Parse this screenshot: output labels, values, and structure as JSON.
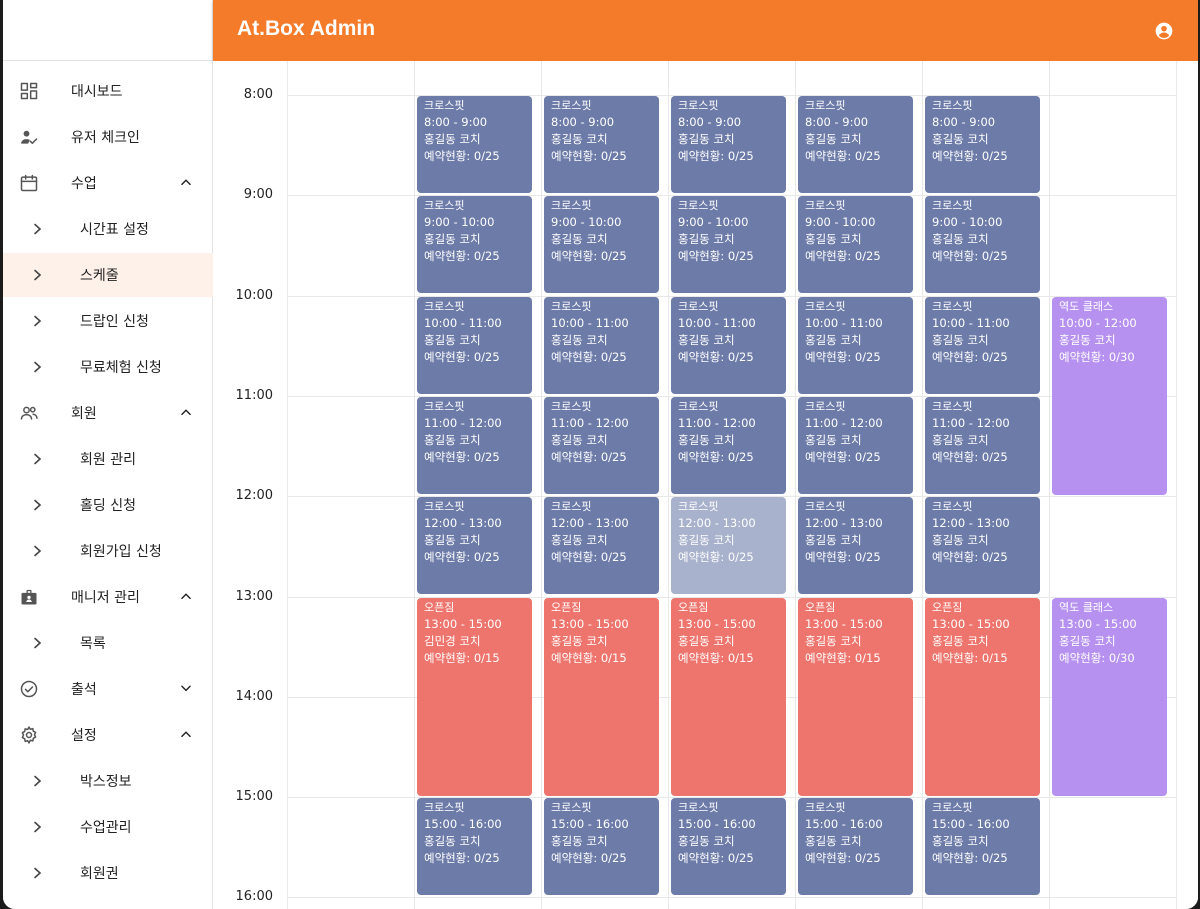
{
  "app": {
    "title": "At.Box Admin",
    "account_icon": "account-circle-icon",
    "accent": "#f47b2a"
  },
  "sidebar": {
    "items": [
      {
        "label": "대시보드",
        "icon": "dashboard-icon",
        "level": 0
      },
      {
        "label": "유저 체크인",
        "icon": "user-check-icon",
        "level": 0
      },
      {
        "label": "수업",
        "icon": "calendar-icon",
        "level": 0,
        "expanded": true
      },
      {
        "label": "시간표 설정",
        "level": 1
      },
      {
        "label": "스케줄",
        "level": 1,
        "active": true
      },
      {
        "label": "드랍인 신청",
        "level": 1
      },
      {
        "label": "무료체험 신청",
        "level": 1
      },
      {
        "label": "회원",
        "icon": "people-icon",
        "level": 0,
        "expanded": true
      },
      {
        "label": "회원 관리",
        "level": 1
      },
      {
        "label": "홀딩 신청",
        "level": 1
      },
      {
        "label": "회원가입 신청",
        "level": 1
      },
      {
        "label": "매니저 관리",
        "icon": "badge-icon",
        "level": 0,
        "expanded": true
      },
      {
        "label": "목록",
        "level": 1
      },
      {
        "label": "출석",
        "icon": "check-circle-icon",
        "level": 0,
        "expanded": false
      },
      {
        "label": "설정",
        "icon": "gear-icon",
        "level": 0,
        "expanded": true
      },
      {
        "label": "박스정보",
        "level": 1
      },
      {
        "label": "수업관리",
        "level": 1
      },
      {
        "label": "회원권",
        "level": 1
      }
    ]
  },
  "schedule": {
    "times": [
      "8:00",
      "9:00",
      "10:00",
      "11:00",
      "12:00",
      "13:00",
      "14:00",
      "15:00",
      "16:00"
    ],
    "start_hour": 8,
    "events": [
      {
        "col": 1,
        "start": 8,
        "end": 9,
        "color": "blue",
        "title": "크로스핏",
        "time": "8:00 - 9:00",
        "coach": "홍길동 코치",
        "status": "예약현황: 0/25"
      },
      {
        "col": 2,
        "start": 8,
        "end": 9,
        "color": "blue",
        "title": "크로스핏",
        "time": "8:00 - 9:00",
        "coach": "홍길동 코치",
        "status": "예약현황: 0/25"
      },
      {
        "col": 3,
        "start": 8,
        "end": 9,
        "color": "blue",
        "title": "크로스핏",
        "time": "8:00 - 9:00",
        "coach": "홍길동 코치",
        "status": "예약현황: 0/25"
      },
      {
        "col": 4,
        "start": 8,
        "end": 9,
        "color": "blue",
        "title": "크로스핏",
        "time": "8:00 - 9:00",
        "coach": "홍길동 코치",
        "status": "예약현황: 0/25"
      },
      {
        "col": 5,
        "start": 8,
        "end": 9,
        "color": "blue",
        "title": "크로스핏",
        "time": "8:00 - 9:00",
        "coach": "홍길동 코치",
        "status": "예약현황: 0/25"
      },
      {
        "col": 1,
        "start": 9,
        "end": 10,
        "color": "blue",
        "title": "크로스핏",
        "time": "9:00 - 10:00",
        "coach": "홍길동 코치",
        "status": "예약현황: 0/25"
      },
      {
        "col": 2,
        "start": 9,
        "end": 10,
        "color": "blue",
        "title": "크로스핏",
        "time": "9:00 - 10:00",
        "coach": "홍길동 코치",
        "status": "예약현황: 0/25"
      },
      {
        "col": 3,
        "start": 9,
        "end": 10,
        "color": "blue",
        "title": "크로스핏",
        "time": "9:00 - 10:00",
        "coach": "홍길동 코치",
        "status": "예약현황: 0/25"
      },
      {
        "col": 4,
        "start": 9,
        "end": 10,
        "color": "blue",
        "title": "크로스핏",
        "time": "9:00 - 10:00",
        "coach": "홍길동 코치",
        "status": "예약현황: 0/25"
      },
      {
        "col": 5,
        "start": 9,
        "end": 10,
        "color": "blue",
        "title": "크로스핏",
        "time": "9:00 - 10:00",
        "coach": "홍길동 코치",
        "status": "예약현황: 0/25"
      },
      {
        "col": 1,
        "start": 10,
        "end": 11,
        "color": "blue",
        "title": "크로스핏",
        "time": "10:00 - 11:00",
        "coach": "홍길동 코치",
        "status": "예약현황: 0/25"
      },
      {
        "col": 2,
        "start": 10,
        "end": 11,
        "color": "blue",
        "title": "크로스핏",
        "time": "10:00 - 11:00",
        "coach": "홍길동 코치",
        "status": "예약현황: 0/25"
      },
      {
        "col": 3,
        "start": 10,
        "end": 11,
        "color": "blue",
        "title": "크로스핏",
        "time": "10:00 - 11:00",
        "coach": "홍길동 코치",
        "status": "예약현황: 0/25"
      },
      {
        "col": 4,
        "start": 10,
        "end": 11,
        "color": "blue",
        "title": "크로스핏",
        "time": "10:00 - 11:00",
        "coach": "홍길동 코치",
        "status": "예약현황: 0/25"
      },
      {
        "col": 5,
        "start": 10,
        "end": 11,
        "color": "blue",
        "title": "크로스핏",
        "time": "10:00 - 11:00",
        "coach": "홍길동 코치",
        "status": "예약현황: 0/25"
      },
      {
        "col": 6,
        "start": 10,
        "end": 12,
        "color": "purple",
        "title": "역도 클래스",
        "time": "10:00 - 12:00",
        "coach": "홍길동 코치",
        "status": "예약현황: 0/30"
      },
      {
        "col": 1,
        "start": 11,
        "end": 12,
        "color": "blue",
        "title": "크로스핏",
        "time": "11:00 - 12:00",
        "coach": "홍길동 코치",
        "status": "예약현황: 0/25"
      },
      {
        "col": 2,
        "start": 11,
        "end": 12,
        "color": "blue",
        "title": "크로스핏",
        "time": "11:00 - 12:00",
        "coach": "홍길동 코치",
        "status": "예약현황: 0/25"
      },
      {
        "col": 3,
        "start": 11,
        "end": 12,
        "color": "blue",
        "title": "크로스핏",
        "time": "11:00 - 12:00",
        "coach": "홍길동 코치",
        "status": "예약현황: 0/25"
      },
      {
        "col": 4,
        "start": 11,
        "end": 12,
        "color": "blue",
        "title": "크로스핏",
        "time": "11:00 - 12:00",
        "coach": "홍길동 코치",
        "status": "예약현황: 0/25"
      },
      {
        "col": 5,
        "start": 11,
        "end": 12,
        "color": "blue",
        "title": "크로스핏",
        "time": "11:00 - 12:00",
        "coach": "홍길동 코치",
        "status": "예약현황: 0/25"
      },
      {
        "col": 1,
        "start": 12,
        "end": 13,
        "color": "blue",
        "title": "크로스핏",
        "time": "12:00 - 13:00",
        "coach": "홍길동 코치",
        "status": "예약현황: 0/25"
      },
      {
        "col": 2,
        "start": 12,
        "end": 13,
        "color": "blue",
        "title": "크로스핏",
        "time": "12:00 - 13:00",
        "coach": "홍길동 코치",
        "status": "예약현황: 0/25"
      },
      {
        "col": 3,
        "start": 12,
        "end": 13,
        "color": "faded",
        "title": "크로스핏",
        "time": "12:00 - 13:00",
        "coach": "홍길동 코치",
        "status": "예약현황: 0/25"
      },
      {
        "col": 4,
        "start": 12,
        "end": 13,
        "color": "blue",
        "title": "크로스핏",
        "time": "12:00 - 13:00",
        "coach": "홍길동 코치",
        "status": "예약현황: 0/25"
      },
      {
        "col": 5,
        "start": 12,
        "end": 13,
        "color": "blue",
        "title": "크로스핏",
        "time": "12:00 - 13:00",
        "coach": "홍길동 코치",
        "status": "예약현황: 0/25"
      },
      {
        "col": 1,
        "start": 13,
        "end": 15,
        "color": "red",
        "title": "오픈짐",
        "time": "13:00 - 15:00",
        "coach": "김민경 코치",
        "status": "예약현황: 0/15"
      },
      {
        "col": 2,
        "start": 13,
        "end": 15,
        "color": "red",
        "title": "오픈짐",
        "time": "13:00 - 15:00",
        "coach": "홍길동 코치",
        "status": "예약현황: 0/15"
      },
      {
        "col": 3,
        "start": 13,
        "end": 15,
        "color": "red",
        "title": "오픈짐",
        "time": "13:00 - 15:00",
        "coach": "홍길동 코치",
        "status": "예약현황: 0/15"
      },
      {
        "col": 4,
        "start": 13,
        "end": 15,
        "color": "red",
        "title": "오픈짐",
        "time": "13:00 - 15:00",
        "coach": "홍길동 코치",
        "status": "예약현황: 0/15"
      },
      {
        "col": 5,
        "start": 13,
        "end": 15,
        "color": "red",
        "title": "오픈짐",
        "time": "13:00 - 15:00",
        "coach": "홍길동 코치",
        "status": "예약현황: 0/15"
      },
      {
        "col": 6,
        "start": 13,
        "end": 15,
        "color": "purple",
        "title": "역도 클래스",
        "time": "13:00 - 15:00",
        "coach": "홍길동 코치",
        "status": "예약현황: 0/30"
      },
      {
        "col": 1,
        "start": 15,
        "end": 16,
        "color": "blue",
        "title": "크로스핏",
        "time": "15:00 - 16:00",
        "coach": "홍길동 코치",
        "status": "예약현황: 0/25"
      },
      {
        "col": 2,
        "start": 15,
        "end": 16,
        "color": "blue",
        "title": "크로스핏",
        "time": "15:00 - 16:00",
        "coach": "홍길동 코치",
        "status": "예약현황: 0/25"
      },
      {
        "col": 3,
        "start": 15,
        "end": 16,
        "color": "blue",
        "title": "크로스핏",
        "time": "15:00 - 16:00",
        "coach": "홍길동 코치",
        "status": "예약현황: 0/25"
      },
      {
        "col": 4,
        "start": 15,
        "end": 16,
        "color": "blue",
        "title": "크로스핏",
        "time": "15:00 - 16:00",
        "coach": "홍길동 코치",
        "status": "예약현황: 0/25"
      },
      {
        "col": 5,
        "start": 15,
        "end": 16,
        "color": "blue",
        "title": "크로스핏",
        "time": "15:00 - 16:00",
        "coach": "홍길동 코치",
        "status": "예약현황: 0/25"
      }
    ],
    "colors": {
      "blue": "#6d7ba8",
      "faded": "#a9b2cc",
      "red": "#ee746e",
      "purple": "#b691f0"
    }
  }
}
